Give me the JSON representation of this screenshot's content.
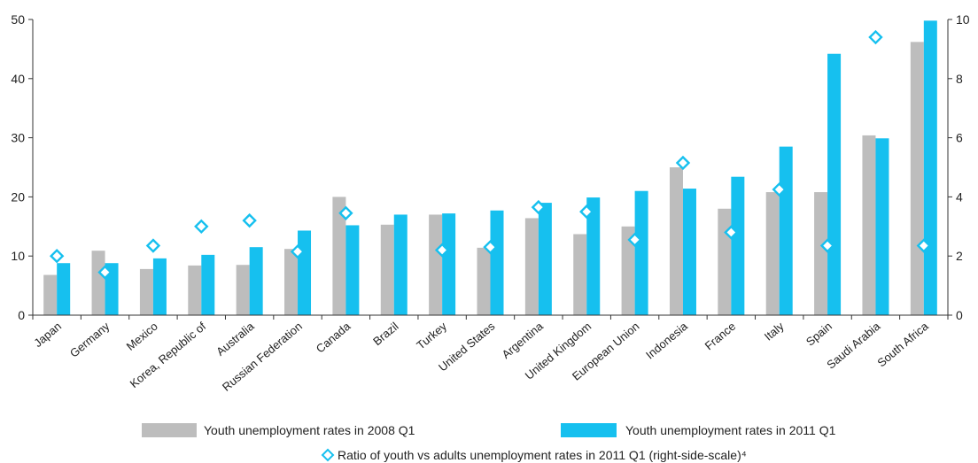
{
  "chart_data": {
    "type": "bar",
    "title": "",
    "xlabel": "",
    "ylabel": "",
    "ylim": [
      0,
      50
    ],
    "yticks": [
      0,
      10,
      20,
      30,
      40,
      50
    ],
    "y2lim": [
      0,
      10
    ],
    "y2ticks": [
      0,
      2,
      4,
      6,
      8,
      10
    ],
    "grid": true,
    "legend_position": "bottom",
    "categories": [
      "Japan",
      "Germany",
      "Mexico",
      "Korea, Republic of",
      "Australia",
      "Russian Federation",
      "Canada",
      "Brazil",
      "Turkey",
      "United States",
      "Argentina",
      "United Kingdom",
      "European Union",
      "Indonesia",
      "France",
      "Italy",
      "Spain",
      "Saudi Arabia",
      "South Africa"
    ],
    "series": [
      {
        "name": "Youth unemployment rates in 2008 Q1",
        "kind": "bar",
        "axis": "left",
        "color": "#bdbdbd",
        "values": [
          6.8,
          10.9,
          7.8,
          8.4,
          8.5,
          11.2,
          20.0,
          15.3,
          17.0,
          11.4,
          16.4,
          13.7,
          15.0,
          25.0,
          18.0,
          20.8,
          20.8,
          30.4,
          46.2
        ]
      },
      {
        "name": "Youth unemployment rates in 2011 Q1",
        "kind": "bar",
        "axis": "left",
        "color": "#16c0ef",
        "values": [
          8.8,
          8.8,
          9.6,
          10.2,
          11.5,
          14.3,
          15.2,
          17.0,
          17.2,
          17.7,
          19.0,
          19.9,
          21.0,
          21.4,
          23.4,
          28.5,
          44.2,
          29.9,
          49.8
        ]
      },
      {
        "name": "Ratio of youth vs adults unemployment rates in 2011 Q1 (right-side-scale)⁴",
        "kind": "marker",
        "axis": "right",
        "color": "#16c0ef",
        "values": [
          2.0,
          1.45,
          2.35,
          3.0,
          3.2,
          2.15,
          3.45,
          null,
          2.2,
          2.3,
          3.65,
          3.5,
          2.55,
          5.15,
          2.8,
          4.25,
          2.35,
          9.4,
          2.35
        ]
      }
    ]
  }
}
